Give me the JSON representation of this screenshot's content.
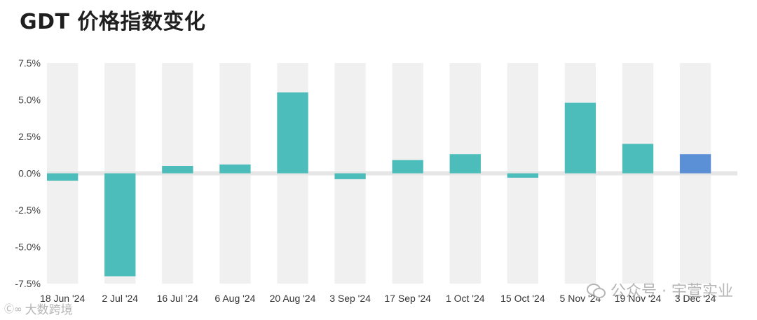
{
  "title": "GDT 价格指数变化",
  "watermark_right": "公众号 · 宇萱实业",
  "watermark_left": "大数跨境",
  "colors": {
    "positive": "#4dbdbb",
    "negative": "#4dbdbb",
    "highlight": "#5b8fd6",
    "band": "#f0f0f0",
    "zero_band": "#e6e6e6"
  },
  "chart_data": {
    "type": "bar",
    "title": "GDT 价格指数变化",
    "categories": [
      "18 Jun '24",
      "2 Jul '24",
      "16 Jul '24",
      "6 Aug '24",
      "20 Aug '24",
      "3 Sep '24",
      "17 Sep '24",
      "1 Oct '24",
      "15 Oct '24",
      "5 Nov '24",
      "19 Nov '24",
      "3 Dec '24"
    ],
    "values": [
      -0.5,
      -7.0,
      0.5,
      0.6,
      5.5,
      -0.4,
      0.9,
      1.3,
      -0.3,
      4.8,
      2.0,
      1.3
    ],
    "highlight_index": 11,
    "ylim": [
      -7.5,
      7.5
    ],
    "yticks": [
      7.5,
      5.0,
      2.5,
      0.0,
      -2.5,
      -5.0,
      -7.5
    ],
    "ytick_labels": [
      "7.5%",
      "5.0%",
      "2.5%",
      "0.0%",
      "-2.5%",
      "-5.0%",
      "-7.5%"
    ],
    "xlabel": "",
    "ylabel": "",
    "grid": false,
    "legend": "none"
  }
}
